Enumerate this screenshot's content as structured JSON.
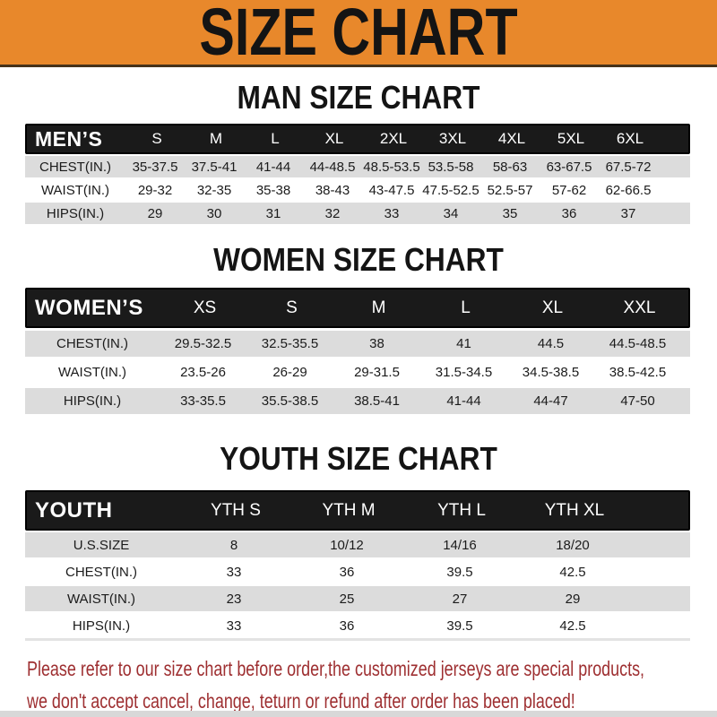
{
  "banner": {
    "title": "SIZE CHART"
  },
  "colors": {
    "banner_bg": "#E8882B",
    "banner_text": "#141414",
    "table_bar_bg": "#1A1A1A",
    "table_bar_text": "#FFFFFF",
    "row_gray": "#DCDCDC",
    "body_text": "#1B1B1B",
    "footer_red": "#9E2F31"
  },
  "chart_data": [
    {
      "type": "table",
      "title": "MAN SIZE CHART",
      "header_label": "MEN’S",
      "columns": [
        "S",
        "M",
        "L",
        "XL",
        "2XL",
        "3XL",
        "4XL",
        "5XL",
        "6XL"
      ],
      "rows": [
        {
          "label": "CHEST(IN.)",
          "values": [
            "35-37.5",
            "37.5-41",
            "41-44",
            "44-48.5",
            "48.5-53.5",
            "53.5-58",
            "58-63",
            "63-67.5",
            "67.5-72"
          ]
        },
        {
          "label": "WAIST(IN.)",
          "values": [
            "29-32",
            "32-35",
            "35-38",
            "38-43",
            "43-47.5",
            "47.5-52.5",
            "52.5-57",
            "57-62",
            "62-66.5"
          ]
        },
        {
          "label": "HIPS(IN.)",
          "values": [
            "29",
            "30",
            "31",
            "32",
            "33",
            "34",
            "35",
            "36",
            "37"
          ]
        }
      ]
    },
    {
      "type": "table",
      "title": "WOMEN SIZE CHART",
      "header_label": "WOMEN’S",
      "columns": [
        "XS",
        "S",
        "M",
        "L",
        "XL",
        "XXL"
      ],
      "rows": [
        {
          "label": "CHEST(IN.)",
          "values": [
            "29.5-32.5",
            "32.5-35.5",
            "38",
            "41",
            "44.5",
            "44.5-48.5"
          ]
        },
        {
          "label": "WAIST(IN.)",
          "values": [
            "23.5-26",
            "26-29",
            "29-31.5",
            "31.5-34.5",
            "34.5-38.5",
            "38.5-42.5"
          ]
        },
        {
          "label": "HIPS(IN.)",
          "values": [
            "33-35.5",
            "35.5-38.5",
            "38.5-41",
            "41-44",
            "44-47",
            "47-50"
          ]
        }
      ]
    },
    {
      "type": "table",
      "title": "YOUTH SIZE CHART",
      "header_label": "YOUTH",
      "columns": [
        "YTH S",
        "YTH M",
        "YTH L",
        "YTH XL"
      ],
      "rows": [
        {
          "label": "U.S.SIZE",
          "values": [
            "8",
            "10/12",
            "14/16",
            "18/20"
          ]
        },
        {
          "label": "CHEST(IN.)",
          "values": [
            "33",
            "36",
            "39.5",
            "42.5"
          ]
        },
        {
          "label": "WAIST(IN.)",
          "values": [
            "23",
            "25",
            "27",
            "29"
          ]
        },
        {
          "label": "HIPS(IN.)",
          "values": [
            "33",
            "36",
            "39.5",
            "42.5"
          ]
        }
      ]
    }
  ],
  "footer": {
    "line1": "Please refer to our size chart before order,the customized jerseys are special products,",
    "line2": "we don't accept cancel, change, teturn or refund after order has been placed!"
  }
}
